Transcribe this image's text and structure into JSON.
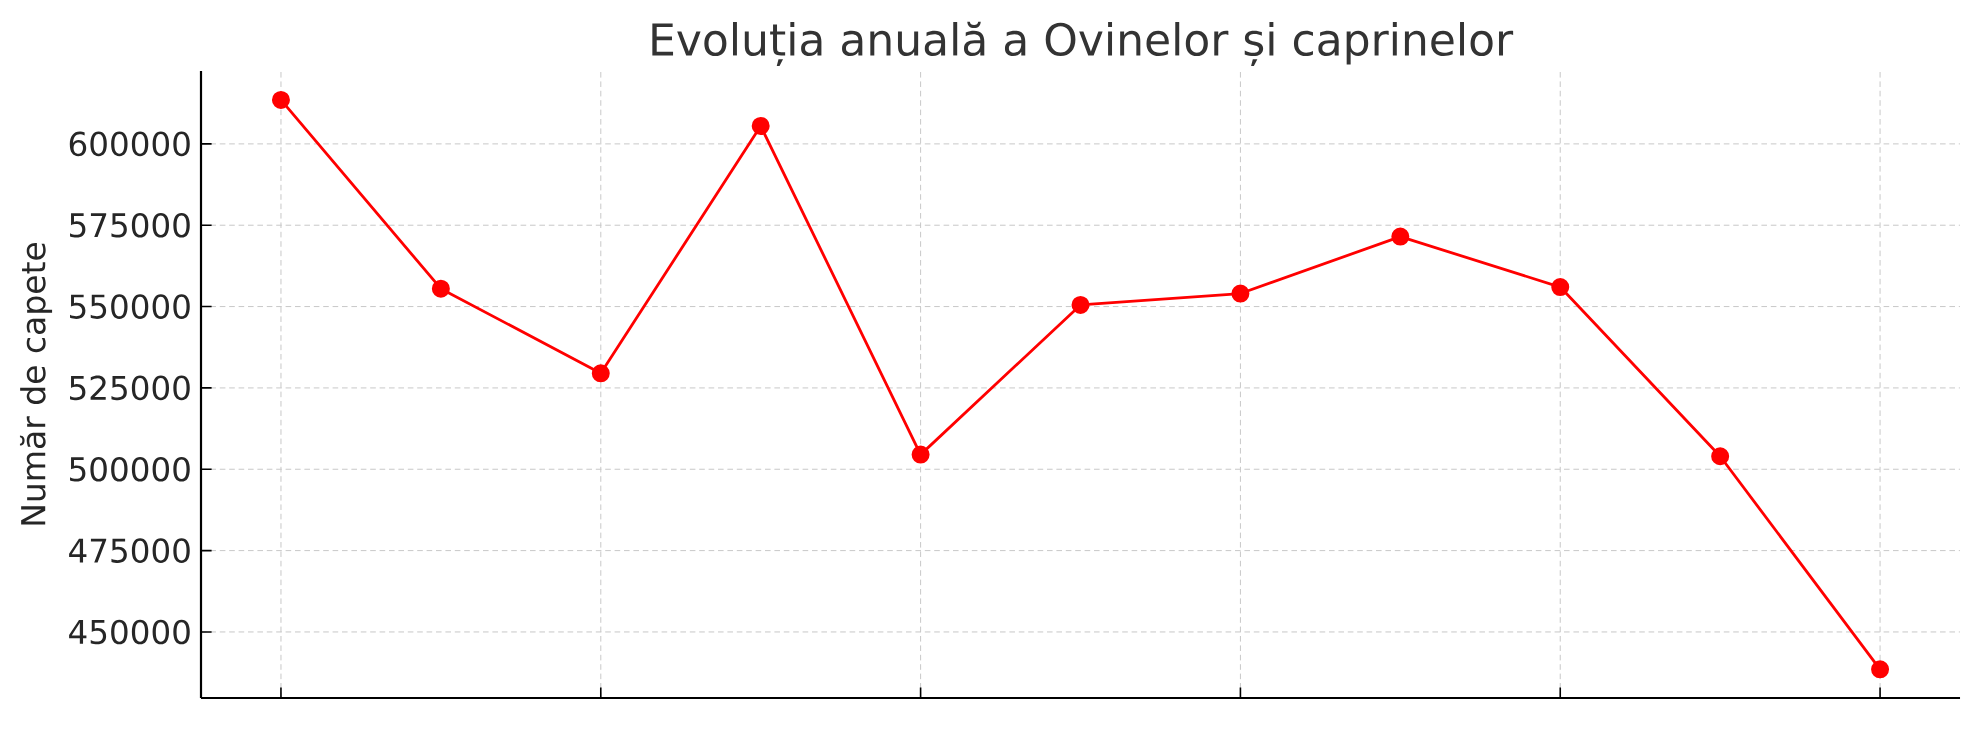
{
  "chart_data": {
    "type": "line",
    "title": "Evoluția anuală a Ovinelor și caprinelor",
    "ylabel": "Număr de capete",
    "categories": [
      null,
      null,
      null,
      null,
      null,
      null,
      null,
      null,
      null,
      null,
      null
    ],
    "series": [
      {
        "color": "#ff0000",
        "values": [
          613500,
          555500,
          529500,
          605500,
          504500,
          550500,
          554000,
          571500,
          556000,
          504000,
          438500
        ]
      }
    ],
    "ylim": [
      429700,
      622400
    ],
    "yticks": [
      450000,
      475000,
      500000,
      525000,
      550000,
      575000,
      600000
    ],
    "grid": true,
    "marker": "circle",
    "line_style": "solid"
  }
}
